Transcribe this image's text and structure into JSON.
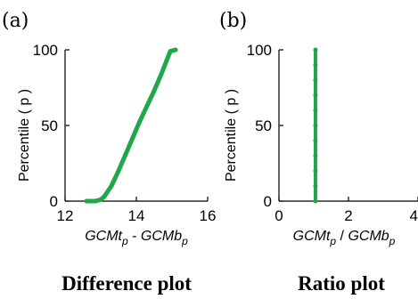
{
  "figure": {
    "panel_a_label": "(a)",
    "panel_b_label": "(b)",
    "caption_a": "Difference plot",
    "caption_b": "Ratio plot"
  },
  "series_color": "#1fa84a",
  "chart_data": [
    {
      "type": "line",
      "panel": "(a)",
      "title": "",
      "xlabel": {
        "base1": "GCMt",
        "sub1": "p",
        "sep": " - ",
        "base2": "GCMb",
        "sub2": "p"
      },
      "ylabel": "Percentile ( p )",
      "xlim": [
        12,
        16
      ],
      "ylim": [
        0,
        100
      ],
      "xticks": [
        12,
        14,
        16
      ],
      "yticks": [
        0,
        50,
        100
      ],
      "grid": false,
      "series": [
        {
          "x": [
            12.6,
            12.85,
            13.0,
            13.1,
            13.3,
            13.5,
            13.7,
            13.9,
            14.1,
            14.3,
            14.5,
            14.7,
            14.85,
            14.95,
            15.1
          ],
          "y": [
            0,
            0,
            1,
            3,
            10,
            20,
            31,
            42,
            53,
            63,
            73,
            84,
            93,
            99,
            100
          ]
        }
      ]
    },
    {
      "type": "scatter",
      "panel": "(b)",
      "title": "",
      "xlabel": {
        "base1": "GCMt",
        "sub1": "p",
        "sep": " / ",
        "base2": "GCMb",
        "sub2": "p"
      },
      "ylabel": "Percentile ( p )",
      "xlim": [
        0,
        4
      ],
      "ylim": [
        0,
        100
      ],
      "xticks": [
        0,
        2,
        4
      ],
      "yticks": [
        0,
        50,
        100
      ],
      "grid": false,
      "series": [
        {
          "x": [
            1.05,
            1.05,
            1.05,
            1.05,
            1.05,
            1.05,
            1.05,
            1.05,
            1.05,
            1.05,
            1.05
          ],
          "y": [
            0,
            10,
            20,
            30,
            40,
            50,
            60,
            70,
            80,
            90,
            100
          ]
        }
      ]
    }
  ]
}
